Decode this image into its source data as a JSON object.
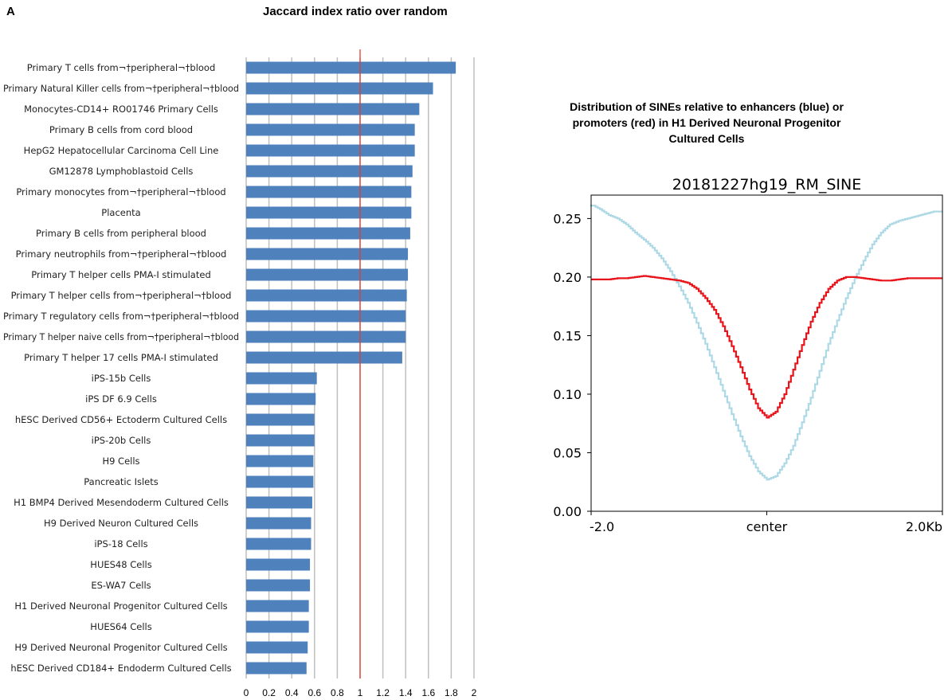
{
  "panel_label": "A",
  "left_title": "Jaccard index ratio over random",
  "right_title": "Distribution of SINEs relative to enhancers (blue) or promoters (red) in H1 Derived Neuronal Progenitor Cultured Cells",
  "chart_data": [
    {
      "type": "bar",
      "orientation": "horizontal",
      "title": "Jaccard index ratio over random",
      "categories": [
        "Primary T cells from¬†peripheral¬†blood",
        "Primary Natural Killer cells from¬†peripheral¬†blood",
        "Monocytes-CD14+ RO01746 Primary Cells",
        "Primary B cells from cord blood",
        "HepG2 Hepatocellular Carcinoma Cell Line",
        "GM12878 Lymphoblastoid Cells",
        "Primary monocytes from¬†peripheral¬†blood",
        "Placenta",
        "Primary B cells from peripheral blood",
        "Primary neutrophils from¬†peripheral¬†blood",
        "Primary T helper cells PMA-I stimulated",
        "Primary T helper cells from¬†peripheral¬†blood",
        "Primary T regulatory cells from¬†peripheral¬†blood",
        "Primary T helper naive cells from¬†peripheral¬†blood",
        "Primary T helper 17 cells PMA-I stimulated",
        "iPS-15b Cells",
        "iPS DF 6.9 Cells",
        "hESC Derived CD56+ Ectoderm Cultured Cells",
        "iPS-20b Cells",
        "H9 Cells",
        "Pancreatic Islets",
        "H1 BMP4 Derived Mesendoderm Cultured Cells",
        "H9 Derived Neuron Cultured Cells",
        "iPS-18 Cells",
        "HUES48 Cells",
        "ES-WA7 Cells",
        "H1 Derived Neuronal Progenitor Cultured Cells",
        "HUES64 Cells",
        "H9 Derived Neuronal Progenitor Cultured Cells",
        "hESC Derived CD184+ Endoderm Cultured Cells"
      ],
      "values": [
        1.84,
        1.64,
        1.52,
        1.48,
        1.48,
        1.46,
        1.45,
        1.45,
        1.44,
        1.42,
        1.42,
        1.41,
        1.4,
        1.4,
        1.37,
        0.62,
        0.61,
        0.6,
        0.6,
        0.59,
        0.59,
        0.58,
        0.57,
        0.57,
        0.56,
        0.56,
        0.55,
        0.55,
        0.54,
        0.53
      ],
      "xlim": [
        0,
        2
      ],
      "xticks": [
        "0",
        "0.2",
        "0.4",
        "0.6",
        "0.8",
        "1",
        "1.2",
        "1.4",
        "1.6",
        "1.8",
        "2"
      ],
      "reference_line": 1,
      "grid": "vertical",
      "colors": {
        "bar": "#4f81bd",
        "reference": "#e23b2e",
        "grid": "#bfbfbf"
      }
    },
    {
      "type": "line",
      "title": "20181227hg19_RM_SINE",
      "xticks": [
        "-2.0",
        "center",
        "2.0Kb"
      ],
      "xlim": [
        -2.0,
        2.0
      ],
      "ylim": [
        0.0,
        0.27
      ],
      "yticks": [
        "0.00",
        "0.05",
        "0.10",
        "0.15",
        "0.20",
        "0.25"
      ],
      "series": [
        {
          "color": "#add8e6",
          "x": [
            -2.0,
            -1.9,
            -1.8,
            -1.7,
            -1.6,
            -1.5,
            -1.4,
            -1.3,
            -1.2,
            -1.1,
            -1.0,
            -0.9,
            -0.8,
            -0.7,
            -0.6,
            -0.5,
            -0.4,
            -0.3,
            -0.2,
            -0.1,
            0.0,
            0.1,
            0.2,
            0.3,
            0.4,
            0.5,
            0.6,
            0.7,
            0.8,
            0.9,
            1.0,
            1.1,
            1.2,
            1.3,
            1.4,
            1.5,
            1.6,
            1.7,
            1.8,
            1.9,
            2.0
          ],
          "y": [
            0.262,
            0.258,
            0.253,
            0.25,
            0.245,
            0.238,
            0.232,
            0.225,
            0.216,
            0.205,
            0.192,
            0.178,
            0.161,
            0.143,
            0.123,
            0.103,
            0.083,
            0.064,
            0.047,
            0.034,
            0.027,
            0.03,
            0.041,
            0.056,
            0.076,
            0.097,
            0.12,
            0.143,
            0.163,
            0.182,
            0.199,
            0.214,
            0.228,
            0.238,
            0.245,
            0.248,
            0.25,
            0.252,
            0.254,
            0.256,
            0.256
          ]
        },
        {
          "color": "#e8141b",
          "x": [
            -2.0,
            -1.9,
            -1.8,
            -1.7,
            -1.6,
            -1.5,
            -1.4,
            -1.3,
            -1.2,
            -1.1,
            -1.0,
            -0.9,
            -0.8,
            -0.7,
            -0.6,
            -0.5,
            -0.4,
            -0.3,
            -0.2,
            -0.1,
            0.0,
            0.1,
            0.2,
            0.3,
            0.4,
            0.5,
            0.6,
            0.7,
            0.8,
            0.9,
            1.0,
            1.1,
            1.2,
            1.3,
            1.4,
            1.5,
            1.6,
            1.7,
            1.8,
            1.9,
            2.0
          ],
          "y": [
            0.198,
            0.198,
            0.198,
            0.199,
            0.199,
            0.2,
            0.201,
            0.2,
            0.199,
            0.198,
            0.197,
            0.195,
            0.19,
            0.182,
            0.172,
            0.158,
            0.141,
            0.123,
            0.104,
            0.088,
            0.08,
            0.085,
            0.1,
            0.121,
            0.142,
            0.162,
            0.178,
            0.19,
            0.197,
            0.2,
            0.2,
            0.199,
            0.198,
            0.197,
            0.197,
            0.198,
            0.199,
            0.199,
            0.199,
            0.199,
            0.199
          ]
        }
      ]
    }
  ]
}
